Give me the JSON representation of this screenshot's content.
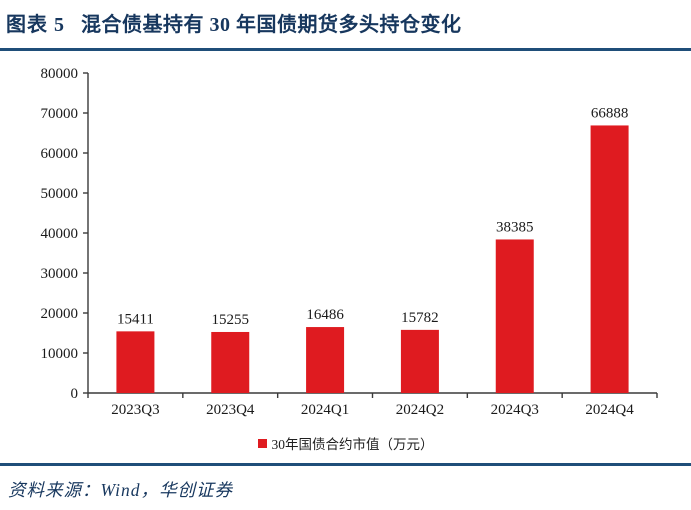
{
  "header": {
    "figure_label": "图表 5",
    "title": "混合债基持有 30 年国债期货多头持仓变化"
  },
  "chart_data": {
    "type": "bar",
    "title": "混合债基持有 30 年国债期货多头持仓变化",
    "categories": [
      "2023Q3",
      "2023Q4",
      "2024Q1",
      "2024Q2",
      "2024Q3",
      "2024Q4"
    ],
    "values": [
      15411,
      15255,
      16486,
      15782,
      38385,
      66888
    ],
    "series_name": "30年国债合约市值（万元）",
    "xlabel": "",
    "ylabel": "",
    "ylim": [
      0,
      80000
    ],
    "y_ticks": [
      0,
      10000,
      20000,
      30000,
      40000,
      50000,
      60000,
      70000,
      80000
    ],
    "grid": "off",
    "legend_position": "bottom",
    "value_labels": "above-bars",
    "bar_color": "#DF1B20"
  },
  "legend": {
    "marker": "square-icon",
    "label": "30年国债合约市值（万元）"
  },
  "footer": {
    "source_text": "资料来源：Wind，华创证券"
  },
  "colors": {
    "accent_navy": "#17375E",
    "rule_blue": "#1F4E79",
    "bar_red": "#DF1B20",
    "axis_gray": "#3a3a3a"
  }
}
